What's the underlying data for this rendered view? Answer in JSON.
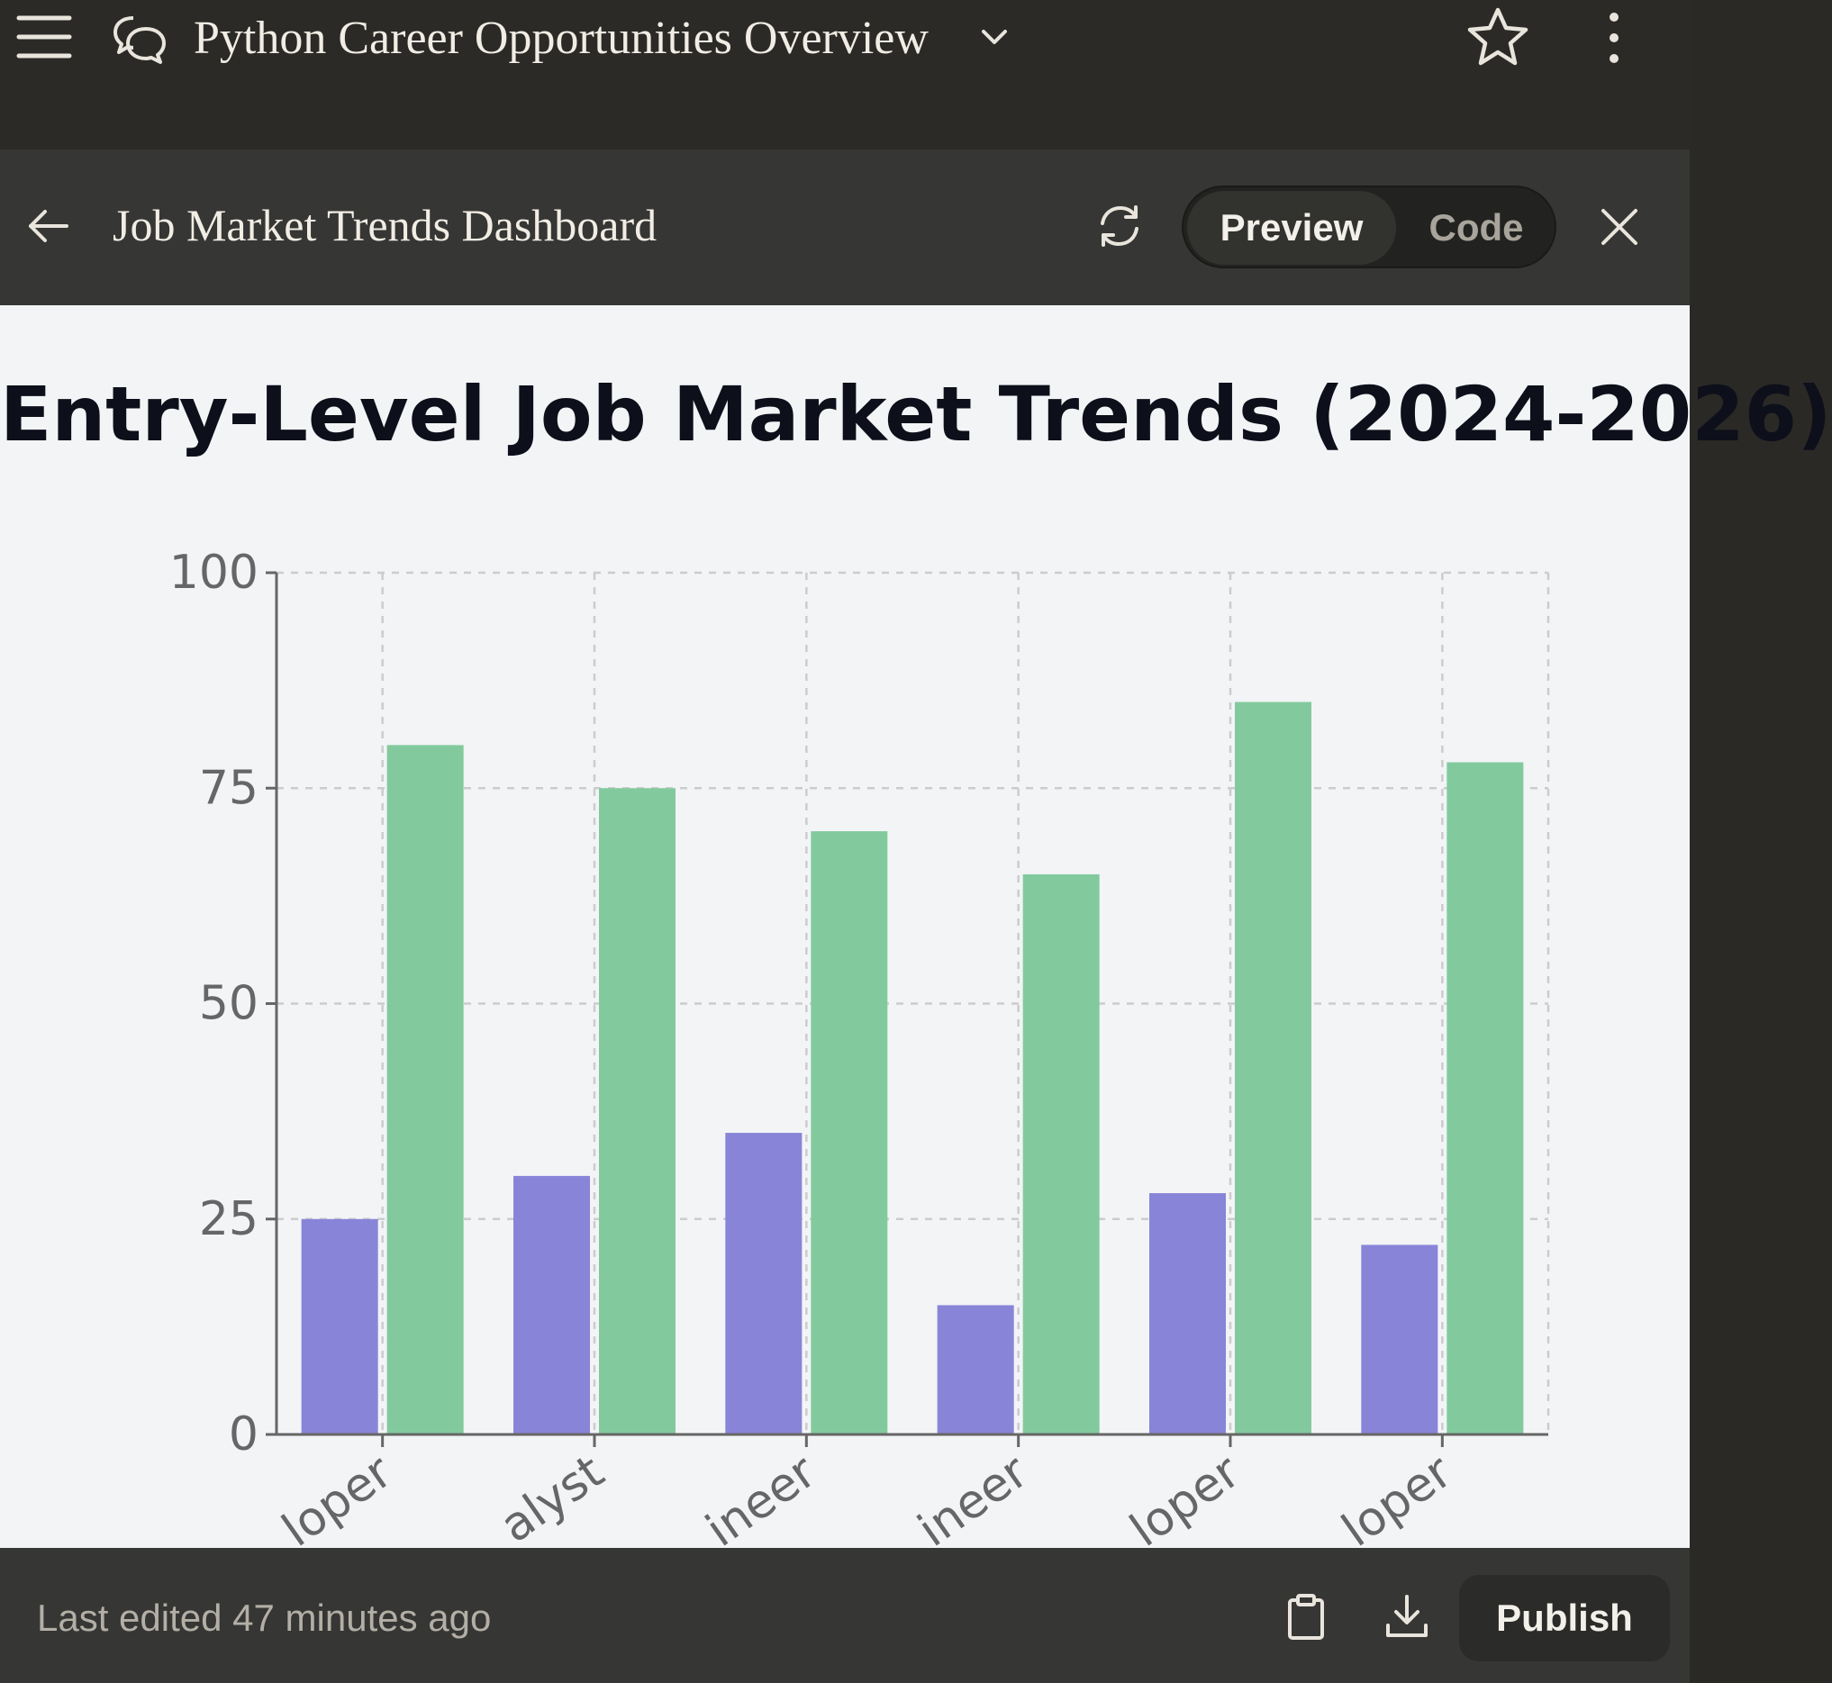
{
  "app": {
    "conversation_title": "Python Career Opportunities Overview",
    "icons": {
      "menu": "hamburger-menu-icon",
      "chat": "chat-bubbles-icon",
      "dropdown": "chevron-down-icon",
      "star": "star-icon",
      "more": "more-vertical-icon"
    }
  },
  "artifact": {
    "title": "Job Market Trends Dashboard",
    "tabs": {
      "preview": "Preview",
      "code": "Code"
    },
    "active_tab": "preview",
    "icons": {
      "back": "arrow-left-icon",
      "refresh": "refresh-icon",
      "close": "close-icon"
    }
  },
  "footer": {
    "last_edited": "Last edited 47 minutes ago",
    "publish_label": "Publish",
    "icons": {
      "copy": "clipboard-icon",
      "download": "download-icon"
    }
  },
  "chart_data": {
    "type": "bar",
    "title": "Entry-Level Job Market Trends (2024-2026)",
    "xlabel": "",
    "ylabel": "",
    "ylim": [
      0,
      100
    ],
    "yticks": [
      0,
      25,
      50,
      75,
      100
    ],
    "grid": true,
    "category_labels_visible": [
      "loper",
      "alyst",
      "ineer",
      "ineer",
      "loper",
      "loper"
    ],
    "series": [
      {
        "color": "#8884d8",
        "values": [
          25,
          30,
          35,
          15,
          28,
          22
        ]
      },
      {
        "color": "#82ca9d",
        "values": [
          80,
          75,
          70,
          65,
          85,
          78
        ]
      }
    ]
  }
}
